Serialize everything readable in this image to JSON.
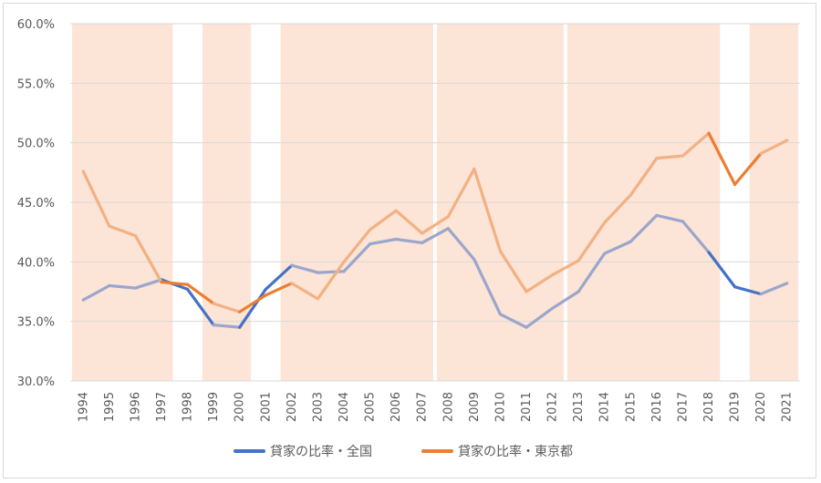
{
  "chart_data": {
    "type": "line",
    "x": [
      "1994",
      "1995",
      "1996",
      "1997",
      "1998",
      "1999",
      "2000",
      "2001",
      "2002",
      "2003",
      "2004",
      "2005",
      "2006",
      "2007",
      "2008",
      "2009",
      "2010",
      "2011",
      "2012",
      "2013",
      "2014",
      "2015",
      "2016",
      "2017",
      "2018",
      "2019",
      "2020",
      "2021"
    ],
    "ylim": [
      30,
      60
    ],
    "yticks": [
      "30.0%",
      "35.0%",
      "40.0%",
      "45.0%",
      "50.0%",
      "55.0%",
      "60.0%"
    ],
    "grid": true,
    "legend_position": "bottom",
    "series": [
      {
        "name": "貸家の比率・全国",
        "color": "#4472c4",
        "faded_color": "#9aa6cc",
        "values": [
          36.8,
          38.0,
          37.8,
          38.5,
          37.7,
          34.7,
          34.5,
          37.7,
          39.7,
          39.1,
          39.2,
          41.5,
          41.9,
          41.6,
          42.8,
          40.2,
          35.6,
          34.5,
          36.1,
          37.5,
          40.7,
          41.7,
          43.9,
          43.4,
          40.8,
          37.9,
          37.3,
          38.2
        ]
      },
      {
        "name": "貸家の比率・東京都",
        "color": "#ed7d31",
        "faded_color": "#f2b183",
        "values": [
          47.6,
          43.0,
          42.2,
          38.3,
          38.1,
          36.5,
          35.8,
          37.2,
          38.2,
          36.9,
          40.0,
          42.7,
          44.3,
          42.4,
          43.8,
          47.8,
          40.9,
          37.5,
          38.9,
          40.1,
          43.3,
          45.6,
          48.7,
          48.9,
          50.8,
          46.5,
          49.1,
          50.2
        ]
      }
    ],
    "shaded_periods": [
      [
        "1994",
        "1997"
      ],
      [
        "1999",
        "2000"
      ],
      [
        "2002",
        "2007"
      ],
      [
        "2008",
        "2012"
      ],
      [
        "2013",
        "2018"
      ],
      [
        "2020",
        "2021"
      ]
    ],
    "shade_color": "#fce4d6"
  }
}
